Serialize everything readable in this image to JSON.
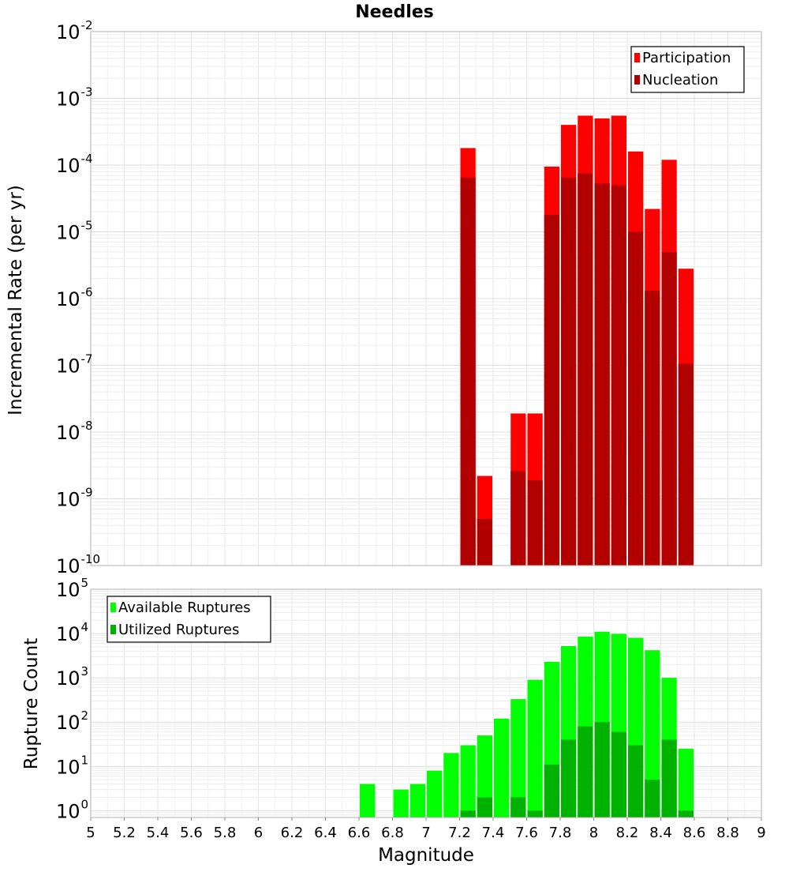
{
  "chart_data": [
    {
      "type": "bar",
      "title": "Needles",
      "xlabel": "",
      "ylabel": "Incremental Rate (per yr)",
      "yscale": "log",
      "ylim": [
        1e-10,
        0.01
      ],
      "xlim": [
        5,
        9
      ],
      "bin_width": 0.1,
      "grid": true,
      "legend_position": "top-right",
      "ytick_labels": [
        {
          "base": "10",
          "exp": "-10",
          "value": 1e-10
        },
        {
          "base": "10",
          "exp": "-9",
          "value": 1e-09
        },
        {
          "base": "10",
          "exp": "-8",
          "value": 1e-08
        },
        {
          "base": "10",
          "exp": "-7",
          "value": 1e-07
        },
        {
          "base": "10",
          "exp": "-6",
          "value": 1e-06
        },
        {
          "base": "10",
          "exp": "-5",
          "value": 1e-05
        },
        {
          "base": "10",
          "exp": "-4",
          "value": 0.0001
        },
        {
          "base": "10",
          "exp": "-3",
          "value": 0.001
        },
        {
          "base": "10",
          "exp": "-2",
          "value": 0.01
        }
      ],
      "x": [
        7.25,
        7.35,
        7.55,
        7.65,
        7.75,
        7.85,
        7.95,
        8.05,
        8.15,
        8.25,
        8.35,
        8.45,
        8.55
      ],
      "series": [
        {
          "name": "Participation",
          "color": "#ff0000",
          "values": [
            0.00018,
            2.2e-09,
            1.9e-08,
            1.9e-08,
            9.5e-05,
            0.0004,
            0.00055,
            0.0005,
            0.00055,
            0.00016,
            2.2e-05,
            0.00012,
            2.8e-06
          ]
        },
        {
          "name": "Nucleation",
          "color": "#b20000",
          "values": [
            6.5e-05,
            5e-10,
            2.6e-09,
            1.9e-09,
            1.8e-05,
            6.5e-05,
            7.5e-05,
            5.3e-05,
            5e-05,
            1e-05,
            1.3e-06,
            5e-06,
            1.05e-07
          ]
        }
      ]
    },
    {
      "type": "bar",
      "title": "",
      "xlabel": "Magnitude",
      "ylabel": "Rupture Count",
      "yscale": "log",
      "ylim": [
        0.7,
        100000
      ],
      "xlim": [
        5,
        9
      ],
      "bin_width": 0.1,
      "grid": true,
      "legend_position": "top-left",
      "ytick_labels": [
        {
          "base": "10",
          "exp": "0",
          "value": 1
        },
        {
          "base": "10",
          "exp": "1",
          "value": 10
        },
        {
          "base": "10",
          "exp": "2",
          "value": 100
        },
        {
          "base": "10",
          "exp": "3",
          "value": 1000
        },
        {
          "base": "10",
          "exp": "4",
          "value": 10000
        },
        {
          "base": "10",
          "exp": "5",
          "value": 100000
        }
      ],
      "xtick_labels": [
        "5",
        "5.2",
        "5.4",
        "5.6",
        "5.8",
        "6",
        "6.2",
        "6.4",
        "6.6",
        "6.8",
        "7",
        "7.2",
        "7.4",
        "7.6",
        "7.8",
        "8",
        "8.2",
        "8.4",
        "8.6",
        "8.8",
        "9"
      ],
      "xtick_values": [
        5,
        5.2,
        5.4,
        5.6,
        5.8,
        6,
        6.2,
        6.4,
        6.6,
        6.8,
        7,
        7.2,
        7.4,
        7.6,
        7.8,
        8,
        8.2,
        8.4,
        8.6,
        8.8,
        9
      ],
      "x": [
        6.65,
        6.85,
        6.95,
        7.05,
        7.15,
        7.25,
        7.35,
        7.45,
        7.55,
        7.65,
        7.75,
        7.85,
        7.95,
        8.05,
        8.15,
        8.25,
        8.35,
        8.45,
        8.55
      ],
      "series": [
        {
          "name": "Available Ruptures",
          "color": "#00ff00",
          "values": [
            4,
            3,
            4,
            8,
            20,
            30,
            50,
            120,
            330,
            900,
            2300,
            5200,
            8500,
            11000,
            9800,
            8000,
            4200,
            1000,
            25
          ]
        },
        {
          "name": "Utilized Ruptures",
          "color": "#00b200",
          "values": [
            null,
            null,
            null,
            null,
            null,
            1,
            2,
            null,
            2,
            1,
            11,
            40,
            80,
            100,
            60,
            30,
            5,
            40,
            1
          ]
        }
      ]
    }
  ]
}
